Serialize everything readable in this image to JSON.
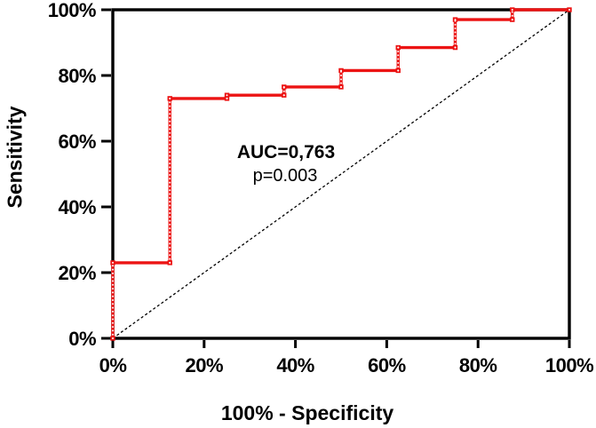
{
  "chart_data": {
    "type": "line",
    "subtype": "roc_step_curve",
    "title": "",
    "xlabel": "100% - Specificity",
    "ylabel": "Sensitivity",
    "xlim": [
      0,
      100
    ],
    "ylim": [
      0,
      100
    ],
    "grid": false,
    "legend": "none",
    "background_color": "#ffffff",
    "axis_color": "#000000",
    "x_ticks": [
      {
        "v": 0,
        "l": "0%"
      },
      {
        "v": 20,
        "l": "20%"
      },
      {
        "v": 40,
        "l": "40%"
      },
      {
        "v": 60,
        "l": "60%"
      },
      {
        "v": 80,
        "l": "80%"
      },
      {
        "v": 100,
        "l": "100%"
      }
    ],
    "y_ticks": [
      {
        "v": 0,
        "l": "0%"
      },
      {
        "v": 20,
        "l": "20%"
      },
      {
        "v": 40,
        "l": "40%"
      },
      {
        "v": 60,
        "l": "60%"
      },
      {
        "v": 80,
        "l": "80%"
      },
      {
        "v": 100,
        "l": "100%"
      }
    ],
    "series": [
      {
        "name": "ROC curve",
        "color": "#EC1313",
        "marker": "square-with-white-dot",
        "points": [
          [
            0,
            0
          ],
          [
            0,
            23
          ],
          [
            12.5,
            23
          ],
          [
            12.5,
            73
          ],
          [
            25,
            73
          ],
          [
            25,
            74
          ],
          [
            37.5,
            74
          ],
          [
            37.5,
            76.5
          ],
          [
            50,
            76.5
          ],
          [
            50,
            81.5
          ],
          [
            62.5,
            81.5
          ],
          [
            62.5,
            88.5
          ],
          [
            75,
            88.5
          ],
          [
            75,
            97
          ],
          [
            87.5,
            97
          ],
          [
            87.5,
            100
          ],
          [
            100,
            100
          ]
        ]
      }
    ],
    "reference_line": {
      "name": "chance diagonal",
      "style": "dashed",
      "color": "#000000",
      "from": [
        0,
        0
      ],
      "to": [
        100,
        100
      ]
    },
    "annotations": [
      {
        "text": "AUC=0,763",
        "bold": true
      },
      {
        "text": "p=0.003",
        "bold": false
      }
    ]
  }
}
